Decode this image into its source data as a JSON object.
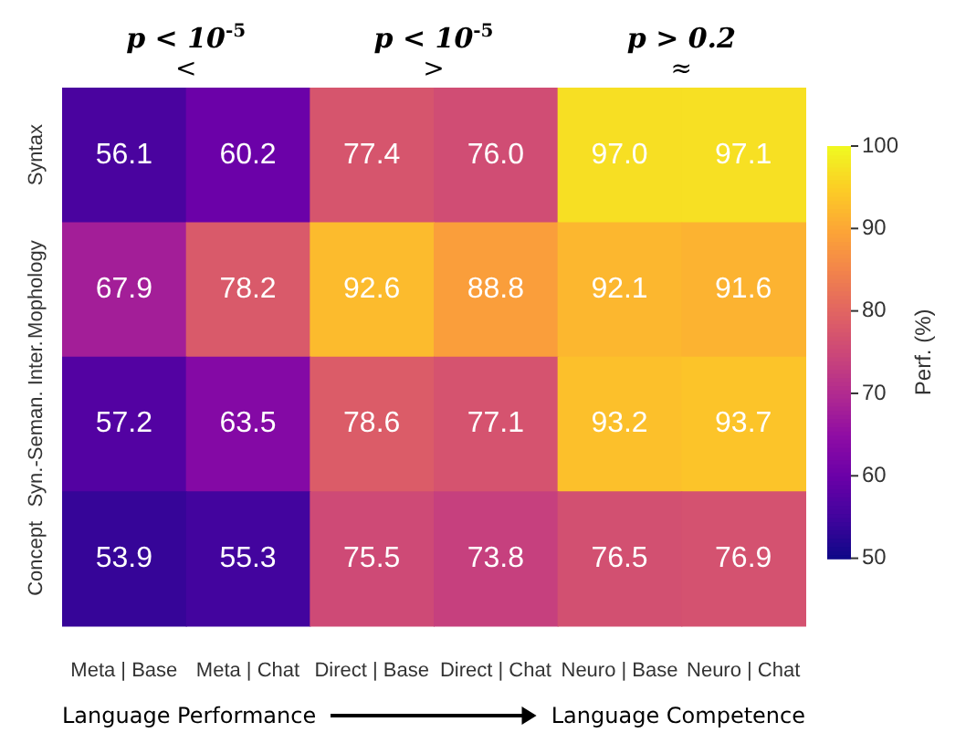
{
  "chart_data": {
    "type": "heatmap",
    "categories": [
      "Meta | Base",
      "Meta | Chat",
      "Direct | Base",
      "Direct | Chat",
      "Neuro | Base",
      "Neuro | Chat"
    ],
    "y_categories": [
      "Syntax",
      "Mophology",
      "Syn.-Seman. Inter.",
      "Concept"
    ],
    "cells": [
      [
        56.1,
        60.2,
        77.4,
        76.0,
        97.0,
        97.1
      ],
      [
        67.9,
        78.2,
        92.6,
        88.8,
        92.1,
        91.6
      ],
      [
        57.2,
        63.5,
        78.6,
        77.1,
        93.2,
        93.7
      ],
      [
        53.9,
        55.3,
        75.5,
        73.8,
        76.5,
        76.9
      ]
    ],
    "cell_labels": [
      [
        "56.1",
        "60.2",
        "77.4",
        "76.0",
        "97.0",
        "97.1"
      ],
      [
        "67.9",
        "78.2",
        "92.6",
        "88.8",
        "92.1",
        "91.6"
      ],
      [
        "57.2",
        "63.5",
        "78.6",
        "77.1",
        "93.2",
        "93.7"
      ],
      [
        "53.9",
        "55.3",
        "75.5",
        "73.8",
        "76.5",
        "76.9"
      ]
    ],
    "data_labels": true,
    "clim": [
      50,
      100
    ],
    "cticks": [
      50,
      60,
      70,
      80,
      90,
      100
    ],
    "clabel": "Perf. (%)",
    "annotations": [
      "p < 10$^{-5}$",
      "<",
      "p < 10$^{-5}$",
      ">",
      "p > 0.2",
      "≈",
      "Language Performance",
      "Language Competence"
    ]
  }
}
